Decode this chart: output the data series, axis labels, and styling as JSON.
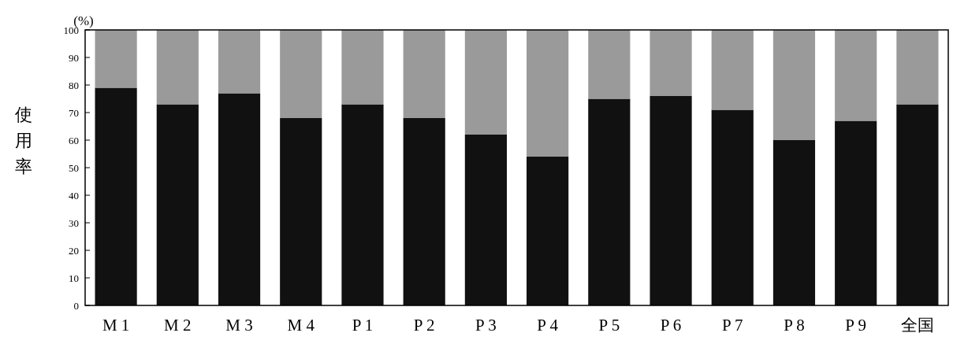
{
  "chart_data": {
    "type": "bar",
    "stacked": true,
    "ylabel": "使用率",
    "annotations": [
      "(%)"
    ],
    "categories": [
      "M 1",
      "M 2",
      "M 3",
      "M 4",
      "P 1",
      "P 2",
      "P 3",
      "P 4",
      "P 5",
      "P 6",
      "P 7",
      "P 8",
      "P 9",
      "全国"
    ],
    "series": [
      {
        "color": "#111111",
        "values": [
          79,
          73,
          77,
          68,
          73,
          68,
          62,
          54,
          75,
          76,
          71,
          60,
          67,
          73
        ]
      },
      {
        "color": "#9a9a9a",
        "values": [
          21,
          27,
          23,
          32,
          27,
          32,
          38,
          46,
          25,
          24,
          29,
          40,
          33,
          27
        ]
      }
    ],
    "ylim": [
      0,
      100
    ],
    "yticks": [
      0,
      10,
      20,
      30,
      40,
      50,
      60,
      70,
      80,
      90,
      100
    ]
  }
}
